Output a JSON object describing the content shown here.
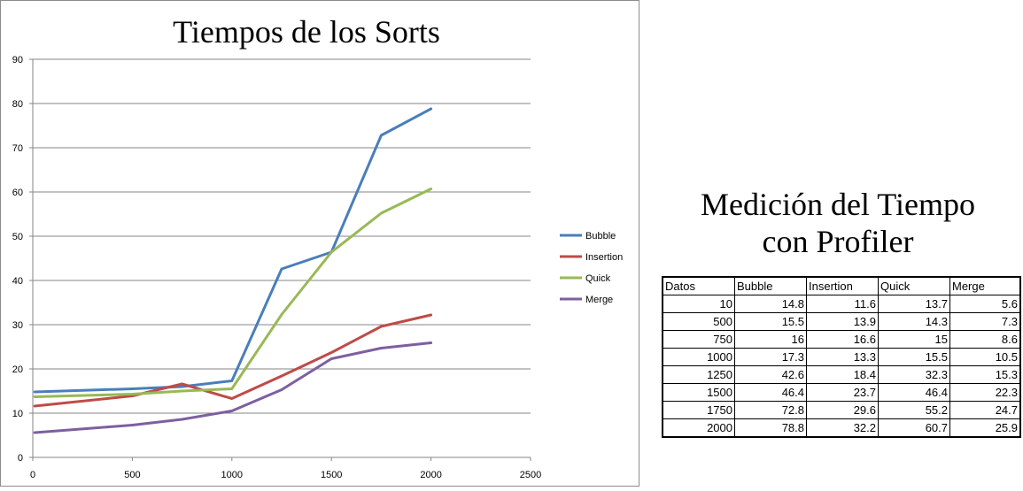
{
  "chart_data": {
    "type": "line",
    "title": "Tiempos de los Sorts",
    "x": [
      10,
      500,
      750,
      1000,
      1250,
      1500,
      1750,
      2000
    ],
    "xlim": [
      0,
      2500
    ],
    "ylim": [
      0,
      90
    ],
    "x_ticks": [
      0,
      500,
      1000,
      1500,
      2000,
      2500
    ],
    "y_ticks": [
      0,
      10,
      20,
      30,
      40,
      50,
      60,
      70,
      80,
      90
    ],
    "grid": "horizontal",
    "legend": "right",
    "series": [
      {
        "name": "Bubble",
        "color": "#4a7ebb",
        "values": [
          14.8,
          15.5,
          16,
          17.3,
          42.6,
          46.4,
          72.8,
          78.8
        ]
      },
      {
        "name": "Insertion",
        "color": "#be4b48",
        "values": [
          11.6,
          13.9,
          16.6,
          13.3,
          18.4,
          23.7,
          29.6,
          32.2
        ]
      },
      {
        "name": "Quick",
        "color": "#98b954",
        "values": [
          13.7,
          14.3,
          15,
          15.5,
          32.3,
          46.4,
          55.2,
          60.7
        ]
      },
      {
        "name": "Merge",
        "color": "#7d5fa0",
        "values": [
          5.6,
          7.3,
          8.6,
          10.5,
          15.3,
          22.3,
          24.7,
          25.9
        ]
      }
    ]
  },
  "table": {
    "heading_line1": "Medición del Tiempo",
    "heading_line2": "con Profiler",
    "headers": [
      "Datos",
      "Bubble",
      "Insertion",
      "Quick",
      "Merge"
    ],
    "rows": [
      [
        "10",
        "14.8",
        "11.6",
        "13.7",
        "5.6"
      ],
      [
        "500",
        "15.5",
        "13.9",
        "14.3",
        "7.3"
      ],
      [
        "750",
        "16",
        "16.6",
        "15",
        "8.6"
      ],
      [
        "1000",
        "17.3",
        "13.3",
        "15.5",
        "10.5"
      ],
      [
        "1250",
        "42.6",
        "18.4",
        "32.3",
        "15.3"
      ],
      [
        "1500",
        "46.4",
        "23.7",
        "46.4",
        "22.3"
      ],
      [
        "1750",
        "72.8",
        "29.6",
        "55.2",
        "24.7"
      ],
      [
        "2000",
        "78.8",
        "32.2",
        "60.7",
        "25.9"
      ]
    ]
  }
}
